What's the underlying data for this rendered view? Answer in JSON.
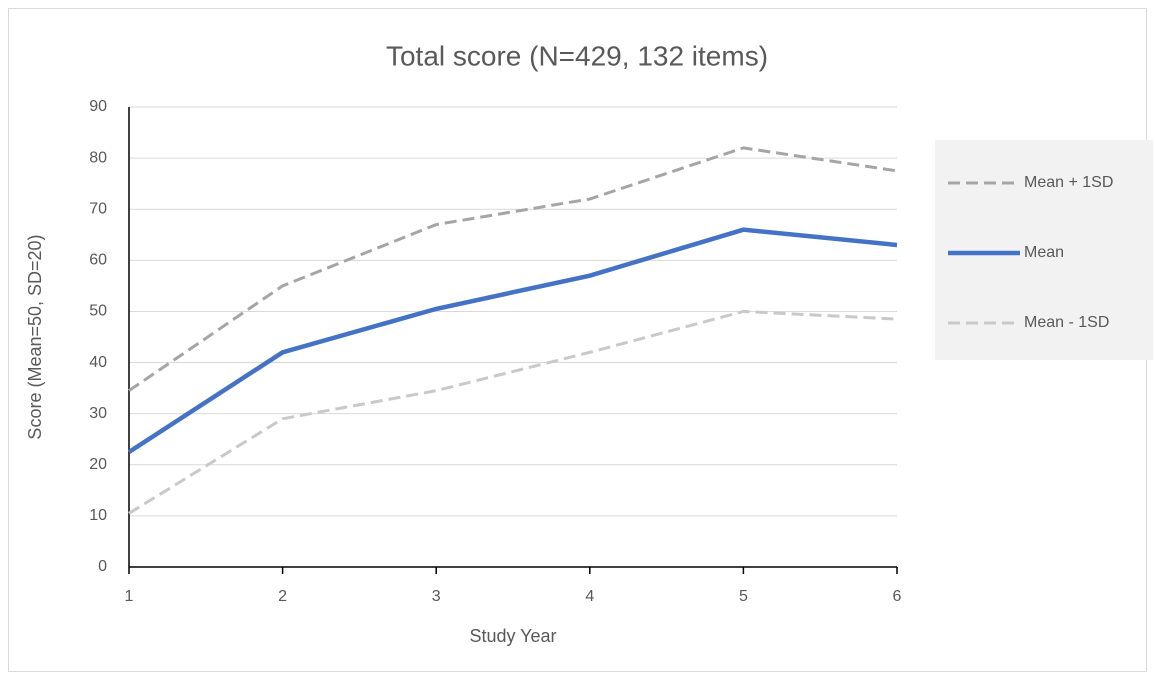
{
  "chart_data": {
    "type": "line",
    "title": "Total score (N=429, 132 items)",
    "x_label": "Study Year",
    "y_label": "Score (Mean=50, SD=20)",
    "x": [
      1,
      2,
      3,
      4,
      5,
      6
    ],
    "series": [
      {
        "name": "Mean + 1SD",
        "color": "#a5a5a5",
        "style": "dashed",
        "values": [
          34.5,
          55,
          67,
          72,
          82,
          77.5
        ]
      },
      {
        "name": "Mean",
        "color": "#4472c4",
        "style": "solid",
        "values": [
          22.5,
          42,
          50.5,
          57,
          66,
          63
        ]
      },
      {
        "name": "Mean - 1SD",
        "color": "#c9c9c9",
        "style": "dashed",
        "values": [
          10.5,
          29,
          34.5,
          42,
          50,
          48.5
        ]
      }
    ],
    "xlim": [
      1,
      6
    ],
    "xticks": [
      1,
      2,
      3,
      4,
      5,
      6
    ],
    "ylim": [
      0,
      90
    ],
    "yticks": [
      0,
      10,
      20,
      30,
      40,
      50,
      60,
      70,
      80,
      90
    ],
    "grid": true,
    "legend": "right"
  }
}
